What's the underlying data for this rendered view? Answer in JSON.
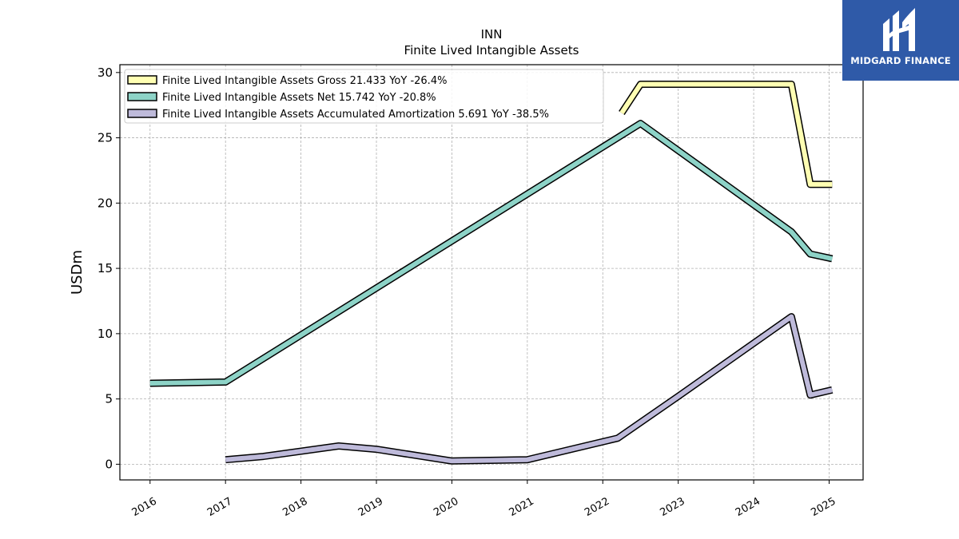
{
  "chart_data": {
    "type": "line",
    "title": "INN",
    "subtitle": "Finite Lived Intangible Assets",
    "ylabel": "USDm",
    "xlabel": "",
    "ylim": [
      -1.2,
      30.6
    ],
    "xlim": [
      2015.6,
      2025.45
    ],
    "yticks": [
      0,
      5,
      10,
      15,
      20,
      25,
      30
    ],
    "xticks": [
      "2016",
      "2017",
      "2018",
      "2019",
      "2020",
      "2021",
      "2022",
      "2023",
      "2024",
      "2025"
    ],
    "grid": true,
    "legend_position": "top-left",
    "series": [
      {
        "name": "Finite Lived Intangible Assets Gross  21.433 YoY -26.4%",
        "color": "#ffffb3",
        "x": [
          2022.25,
          2022.5,
          2024.5,
          2024.75,
          2025.04
        ],
        "y": [
          26.9,
          29.1,
          29.1,
          21.43,
          21.43
        ]
      },
      {
        "name": "Finite Lived Intangible Assets Net  15.742 YoY -20.8%",
        "color": "#8dd3c7",
        "x": [
          2016.0,
          2017.0,
          2022.5,
          2024.5,
          2024.75,
          2025.04
        ],
        "y": [
          6.2,
          6.3,
          26.1,
          17.8,
          16.1,
          15.74
        ]
      },
      {
        "name": "Finite Lived Intangible Assets Accumulated Amortization  5.691 YoY -38.5%",
        "color": "#bebada",
        "x": [
          2017.0,
          2017.5,
          2018.5,
          2019.0,
          2020.0,
          2021.0,
          2022.2,
          2023.0,
          2024.5,
          2024.75,
          2025.04
        ],
        "y": [
          0.35,
          0.6,
          1.4,
          1.15,
          0.25,
          0.35,
          2.0,
          5.2,
          11.3,
          5.3,
          5.69
        ]
      }
    ]
  },
  "logo": {
    "text": "MIDGARD FINANCE"
  }
}
